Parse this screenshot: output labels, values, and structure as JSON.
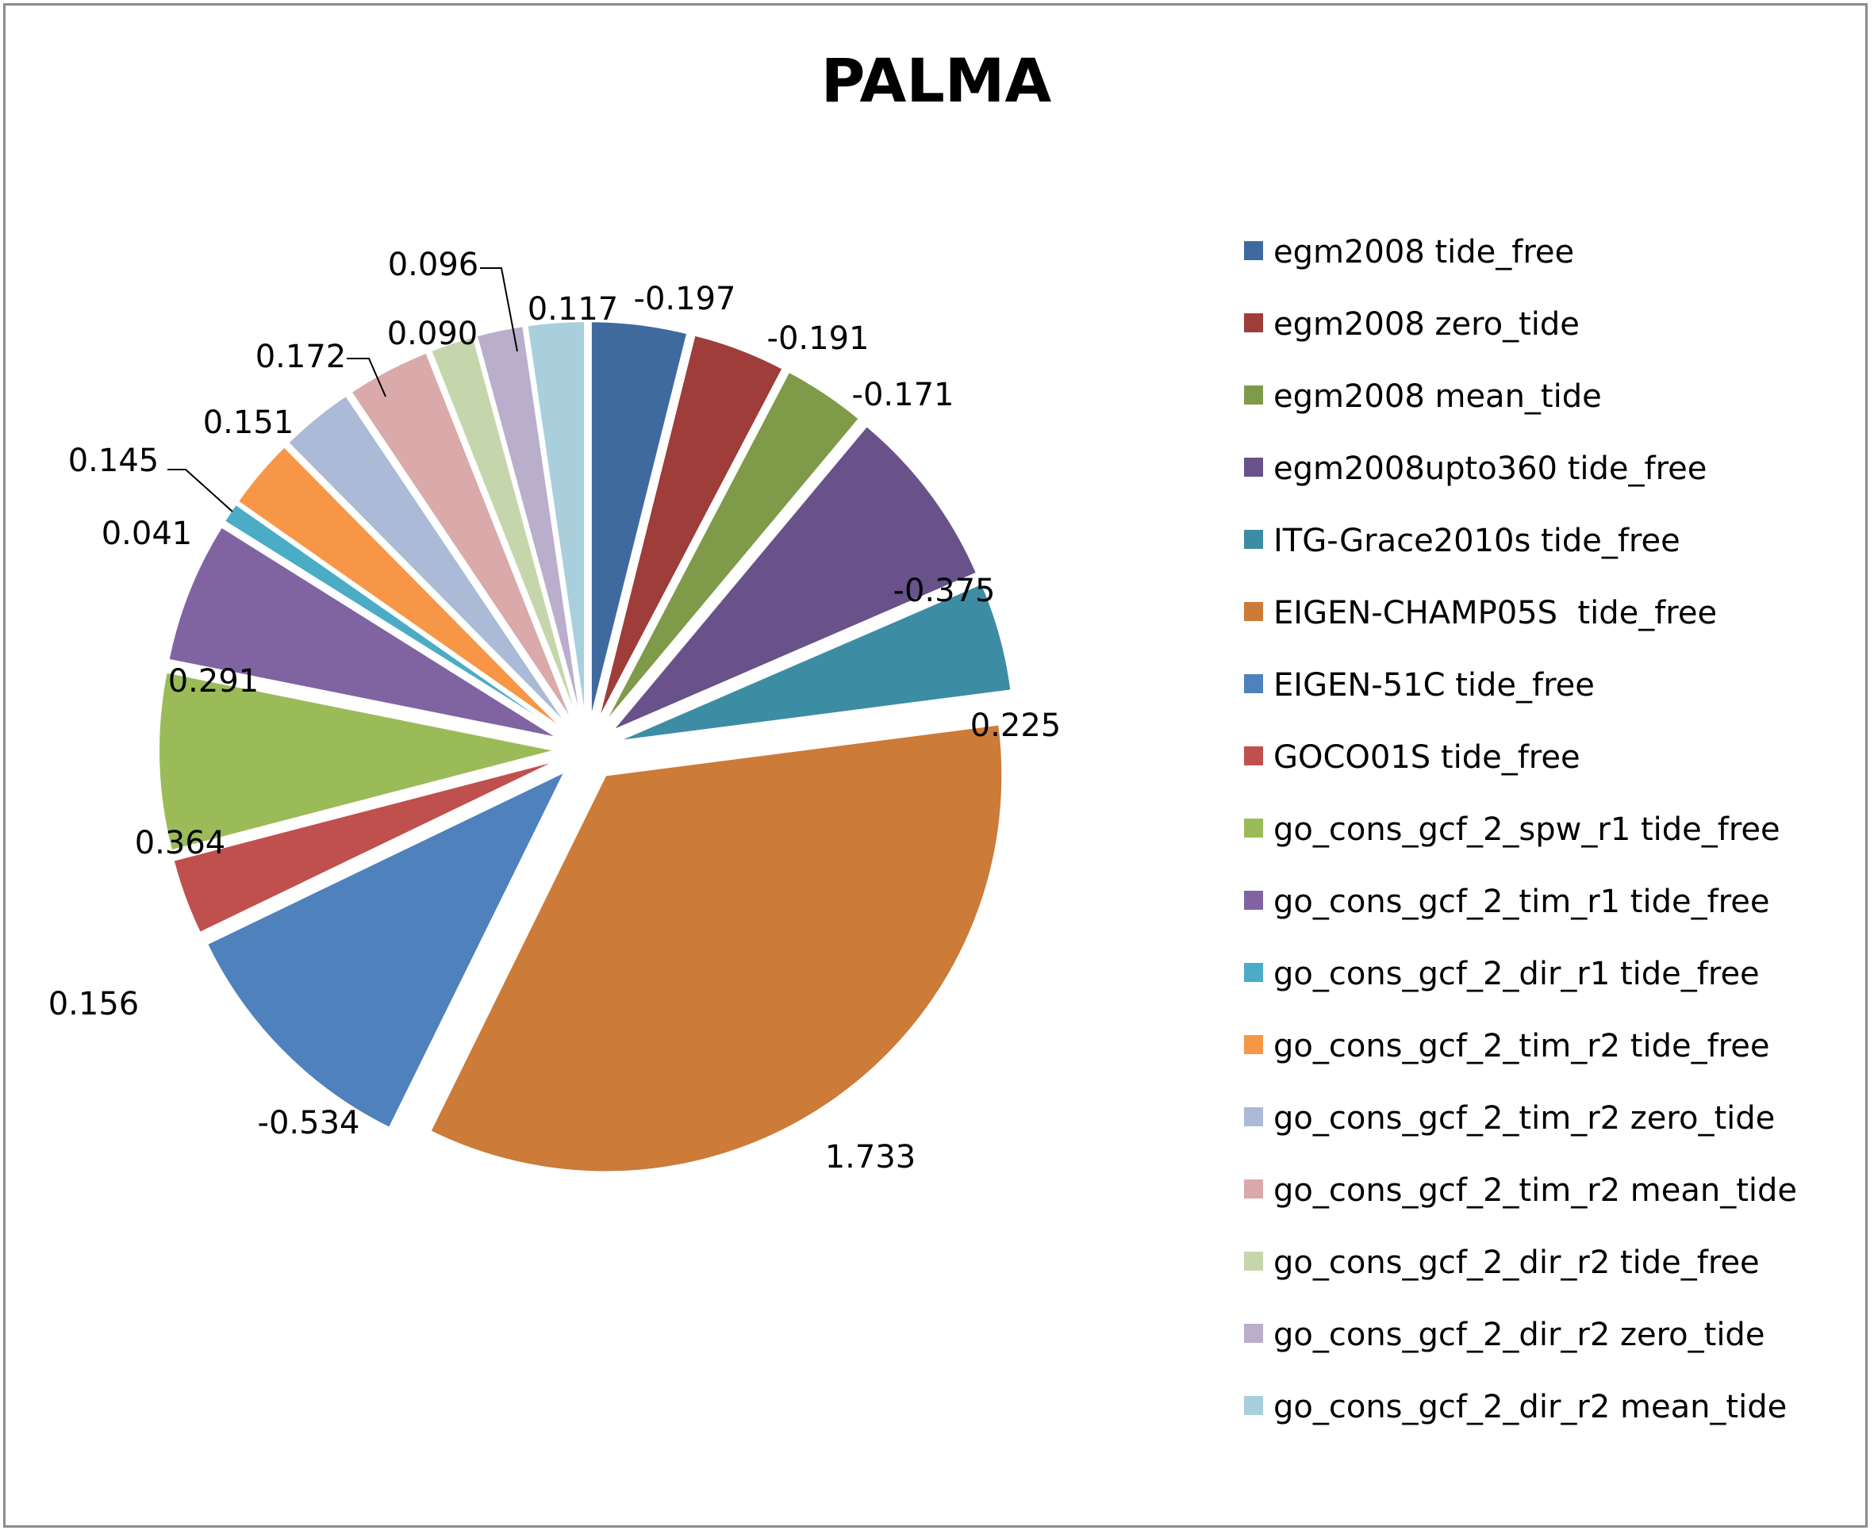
{
  "chart_data": {
    "type": "pie",
    "title": "PALMA",
    "legend_position": "right",
    "exploded": true,
    "slices": [
      {
        "name": "egm2008 tide_free",
        "value": -0.197,
        "label": "-0.197",
        "color": "#3F6A9E"
      },
      {
        "name": "egm2008 zero_tide",
        "value": -0.191,
        "label": "-0.191",
        "color": "#9E3D3A"
      },
      {
        "name": "egm2008 mean_tide",
        "value": -0.171,
        "label": "-0.171",
        "color": "#7F9A48"
      },
      {
        "name": "egm2008upto360 tide_free",
        "value": -0.375,
        "label": "-0.375",
        "color": "#69518A"
      },
      {
        "name": "ITG-Grace2010s tide_free",
        "value": 0.225,
        "label": "0.225",
        "color": "#3C8DA3"
      },
      {
        "name": "EIGEN-CHAMP05S  tide_free",
        "value": 1.733,
        "label": "1.733",
        "color": "#CC7B38"
      },
      {
        "name": "EIGEN-51C tide_free",
        "value": -0.534,
        "label": "-0.534",
        "color": "#4F81BD"
      },
      {
        "name": "GOCO01S tide_free",
        "value": 0.156,
        "label": "0.156",
        "color": "#C0504D"
      },
      {
        "name": "go_cons_gcf_2_spw_r1 tide_free",
        "value": 0.364,
        "label": "0.364",
        "color": "#9BBB59"
      },
      {
        "name": "go_cons_gcf_2_tim_r1 tide_free",
        "value": 0.291,
        "label": "0.291",
        "color": "#8064A2"
      },
      {
        "name": "go_cons_gcf_2_dir_r1 tide_free",
        "value": 0.041,
        "label": "0.041",
        "color": "#4BACC6"
      },
      {
        "name": "go_cons_gcf_2_tim_r2 tide_free",
        "value": 0.145,
        "label": "0.145",
        "color": "#F79646"
      },
      {
        "name": "go_cons_gcf_2_tim_r2 zero_tide",
        "value": 0.151,
        "label": "0.151",
        "color": "#AABAD7"
      },
      {
        "name": "go_cons_gcf_2_tim_r2 mean_tide",
        "value": 0.172,
        "label": "0.172",
        "color": "#D9AAA9"
      },
      {
        "name": "go_cons_gcf_2_dir_r2 tide_free",
        "value": 0.09,
        "label": "0.090",
        "color": "#C6D6AC"
      },
      {
        "name": "go_cons_gcf_2_dir_r2 zero_tide",
        "value": 0.096,
        "label": "0.096",
        "color": "#B9AECB"
      },
      {
        "name": "go_cons_gcf_2_dir_r2 mean_tide",
        "value": 0.117,
        "label": "0.117",
        "color": "#A9CEDC"
      }
    ]
  }
}
